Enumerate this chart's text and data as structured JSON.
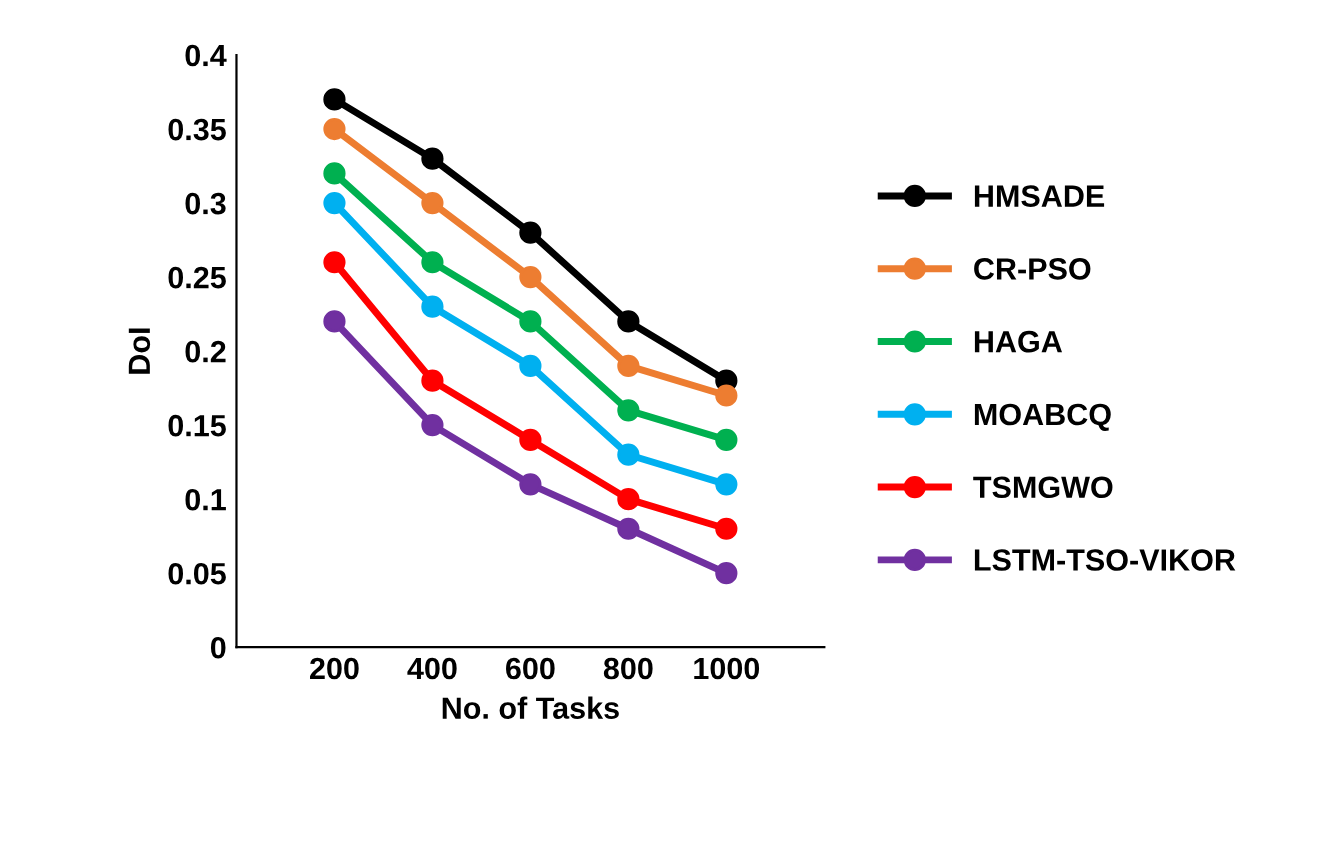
{
  "chart_data": {
    "type": "line",
    "xlabel": "No. of Tasks",
    "ylabel": "DoI",
    "x": [
      200,
      400,
      600,
      800,
      1000
    ],
    "xlim": [
      0,
      1200
    ],
    "xticks": [
      200,
      400,
      600,
      800,
      1000
    ],
    "ylim": [
      0,
      0.4
    ],
    "yticks": [
      0,
      0.05,
      0.1,
      0.15,
      0.2,
      0.25,
      0.3,
      0.35,
      0.4
    ],
    "marker": "circle",
    "line_style": "solid",
    "grid": false,
    "legend": "right",
    "series": [
      {
        "name": "HMSADE",
        "color": "#000000",
        "values": [
          0.37,
          0.33,
          0.28,
          0.22,
          0.18
        ]
      },
      {
        "name": "CR-PSO",
        "color": "#ed7d31",
        "values": [
          0.35,
          0.3,
          0.25,
          0.19,
          0.17
        ]
      },
      {
        "name": "HAGA",
        "color": "#00b050",
        "values": [
          0.32,
          0.26,
          0.22,
          0.16,
          0.14
        ]
      },
      {
        "name": "MOABCQ",
        "color": "#00b0f0",
        "values": [
          0.3,
          0.23,
          0.19,
          0.13,
          0.11
        ]
      },
      {
        "name": "TSMGWO",
        "color": "#ff0000",
        "values": [
          0.26,
          0.18,
          0.14,
          0.1,
          0.08
        ]
      },
      {
        "name": "LSTM-TSO-VIKOR",
        "color": "#7030a0",
        "values": [
          0.22,
          0.15,
          0.11,
          0.08,
          0.05
        ]
      }
    ]
  }
}
